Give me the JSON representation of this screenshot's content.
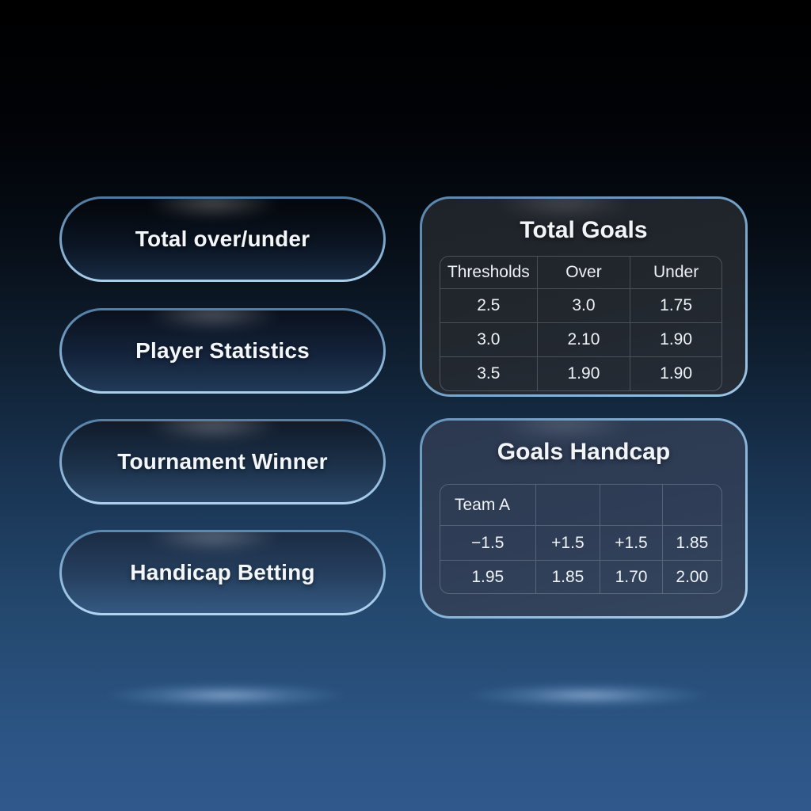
{
  "menu": {
    "items": [
      {
        "label": "Total over/under"
      },
      {
        "label": "Player Statistics"
      },
      {
        "label": "Tournament Winner"
      },
      {
        "label": "Handicap Betting"
      }
    ]
  },
  "panels": [
    {
      "title": "Total Goals",
      "table": {
        "headers": [
          "Thresholds",
          "Over",
          "Under"
        ],
        "rows": [
          [
            "2.5",
            "3.0",
            "1.75"
          ],
          [
            "3.0",
            "2.10",
            "1.90"
          ],
          [
            "3.5",
            "1.90",
            "1.90"
          ]
        ]
      }
    },
    {
      "title": "Goals Handcap",
      "table": {
        "headers": [
          "Team A",
          "",
          "",
          ""
        ],
        "rows": [
          [
            "−1.5",
            "+1.5",
            "+1.5",
            "1.85"
          ],
          [
            "1.95",
            "1.85",
            "1.70",
            "2.00"
          ]
        ]
      }
    }
  ],
  "colors": {
    "background_top": "#000000",
    "background_bottom": "#30588c",
    "accent_border": "#8fb9de",
    "panel_dark": "#22272e",
    "panel_blue": "#2f3e56",
    "text": "#f2f5f8",
    "glow": "#bcdcff"
  }
}
